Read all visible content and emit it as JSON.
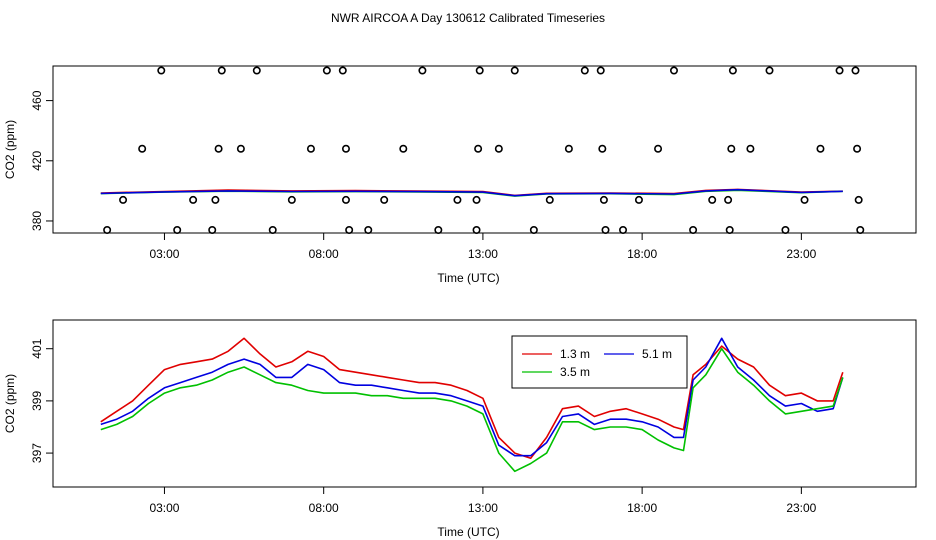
{
  "title": "NWR AIRCOA A  Day 130612  Calibrated Timeseries",
  "chart_data": [
    {
      "type": "scatter",
      "xlabel": "Time (UTC)",
      "ylabel": "CO2 (ppm)",
      "xlim": [
        -0.5,
        26.6
      ],
      "ylim": [
        372,
        483
      ],
      "x_ticks": [
        {
          "value": 3,
          "label": "03:00"
        },
        {
          "value": 8,
          "label": "08:00"
        },
        {
          "value": 13,
          "label": "13:00"
        },
        {
          "value": 18,
          "label": "18:00"
        },
        {
          "value": 23,
          "label": "23:00"
        }
      ],
      "y_ticks": [
        {
          "value": 380,
          "label": "380"
        },
        {
          "value": 420,
          "label": "420"
        },
        {
          "value": 460,
          "label": "460"
        }
      ],
      "calibration_points": [
        {
          "x": 1.2,
          "y": 374
        },
        {
          "x": 1.7,
          "y": 394
        },
        {
          "x": 2.3,
          "y": 428
        },
        {
          "x": 2.9,
          "y": 480
        },
        {
          "x": 3.4,
          "y": 374
        },
        {
          "x": 3.9,
          "y": 394
        },
        {
          "x": 4.5,
          "y": 374
        },
        {
          "x": 4.6,
          "y": 394
        },
        {
          "x": 4.7,
          "y": 428
        },
        {
          "x": 4.8,
          "y": 480
        },
        {
          "x": 5.4,
          "y": 428
        },
        {
          "x": 5.9,
          "y": 480
        },
        {
          "x": 6.4,
          "y": 374
        },
        {
          "x": 7.0,
          "y": 394
        },
        {
          "x": 7.6,
          "y": 428
        },
        {
          "x": 8.1,
          "y": 480
        },
        {
          "x": 8.6,
          "y": 480
        },
        {
          "x": 8.7,
          "y": 428
        },
        {
          "x": 8.7,
          "y": 394
        },
        {
          "x": 8.8,
          "y": 374
        },
        {
          "x": 9.4,
          "y": 374
        },
        {
          "x": 9.9,
          "y": 394
        },
        {
          "x": 10.5,
          "y": 428
        },
        {
          "x": 11.1,
          "y": 480
        },
        {
          "x": 11.6,
          "y": 374
        },
        {
          "x": 12.2,
          "y": 394
        },
        {
          "x": 12.8,
          "y": 374
        },
        {
          "x": 12.8,
          "y": 394
        },
        {
          "x": 12.85,
          "y": 428
        },
        {
          "x": 12.9,
          "y": 480
        },
        {
          "x": 13.5,
          "y": 428
        },
        {
          "x": 14.0,
          "y": 480
        },
        {
          "x": 14.6,
          "y": 374
        },
        {
          "x": 15.1,
          "y": 394
        },
        {
          "x": 15.7,
          "y": 428
        },
        {
          "x": 16.2,
          "y": 480
        },
        {
          "x": 16.7,
          "y": 480
        },
        {
          "x": 16.75,
          "y": 428
        },
        {
          "x": 16.8,
          "y": 394
        },
        {
          "x": 16.85,
          "y": 374
        },
        {
          "x": 17.4,
          "y": 374
        },
        {
          "x": 17.9,
          "y": 394
        },
        {
          "x": 18.5,
          "y": 428
        },
        {
          "x": 19.0,
          "y": 480
        },
        {
          "x": 19.6,
          "y": 374
        },
        {
          "x": 20.2,
          "y": 394
        },
        {
          "x": 20.7,
          "y": 394
        },
        {
          "x": 20.75,
          "y": 374
        },
        {
          "x": 20.8,
          "y": 428
        },
        {
          "x": 20.85,
          "y": 480
        },
        {
          "x": 21.4,
          "y": 428
        },
        {
          "x": 22.0,
          "y": 480
        },
        {
          "x": 22.5,
          "y": 374
        },
        {
          "x": 23.1,
          "y": 394
        },
        {
          "x": 23.6,
          "y": 428
        },
        {
          "x": 24.2,
          "y": 480
        },
        {
          "x": 24.7,
          "y": 480
        },
        {
          "x": 24.75,
          "y": 428
        },
        {
          "x": 24.8,
          "y": 394
        },
        {
          "x": 24.85,
          "y": 374
        }
      ],
      "series": [
        {
          "color": "#e00000",
          "x": [
            1,
            3,
            5,
            7,
            9,
            11,
            13,
            14,
            15,
            17,
            19,
            20,
            21,
            23,
            24.3
          ],
          "y": [
            398.6,
            399.6,
            400.5,
            400.0,
            400.2,
            399.9,
            399.6,
            397.0,
            398.4,
            398.6,
            398.2,
            400.3,
            401.0,
            399.2,
            399.8
          ]
        },
        {
          "color": "#00c000",
          "x": [
            1,
            3,
            5,
            7,
            9,
            11,
            13,
            14,
            15,
            17,
            19,
            20,
            21,
            23,
            24.3
          ],
          "y": [
            398.2,
            399.2,
            399.8,
            399.4,
            399.5,
            399.3,
            399.0,
            396.5,
            398.0,
            398.1,
            397.5,
            399.7,
            400.4,
            398.8,
            399.7
          ]
        },
        {
          "color": "#0000e0",
          "x": [
            1,
            3,
            5,
            7,
            9,
            11,
            13,
            14,
            15,
            17,
            19,
            20,
            21,
            23,
            24.3
          ],
          "y": [
            398.3,
            399.3,
            400.0,
            399.6,
            399.7,
            399.5,
            399.2,
            396.8,
            398.1,
            398.3,
            397.9,
            400.0,
            400.8,
            399.0,
            399.7
          ]
        }
      ]
    },
    {
      "type": "line",
      "xlabel": "Time (UTC)",
      "ylabel": "CO2 (ppm)",
      "xlim": [
        -0.5,
        26.6
      ],
      "ylim": [
        395.7,
        402.1
      ],
      "x_ticks": [
        {
          "value": 3,
          "label": "03:00"
        },
        {
          "value": 8,
          "label": "08:00"
        },
        {
          "value": 13,
          "label": "13:00"
        },
        {
          "value": 18,
          "label": "18:00"
        },
        {
          "value": 23,
          "label": "23:00"
        }
      ],
      "y_ticks": [
        {
          "value": 397,
          "label": "397"
        },
        {
          "value": 399,
          "label": "399"
        },
        {
          "value": 401,
          "label": "401"
        }
      ],
      "legend": {
        "position": "top-center",
        "entries": [
          {
            "name": "1.3 m",
            "color": "#e00000"
          },
          {
            "name": "5.1 m",
            "color": "#0000e0"
          },
          {
            "name": "3.5 m",
            "color": "#00c000"
          }
        ]
      },
      "series": [
        {
          "name": "1.3 m",
          "color": "#e00000",
          "x": [
            1.0,
            1.5,
            2.0,
            2.5,
            3.0,
            3.5,
            4.0,
            4.5,
            5.0,
            5.5,
            6.0,
            6.5,
            7.0,
            7.5,
            8.0,
            8.5,
            9.0,
            9.5,
            10.0,
            10.5,
            11.0,
            11.5,
            12.0,
            12.5,
            13.0,
            13.5,
            14.0,
            14.5,
            15.0,
            15.5,
            16.0,
            16.5,
            17.0,
            17.5,
            18.0,
            18.5,
            19.0,
            19.3,
            19.6,
            20.0,
            20.5,
            21.0,
            21.5,
            22.0,
            22.5,
            23.0,
            23.5,
            24.0,
            24.3
          ],
          "y": [
            398.2,
            398.6,
            399.0,
            399.6,
            400.2,
            400.4,
            400.5,
            400.6,
            400.9,
            401.4,
            400.8,
            400.3,
            400.5,
            400.9,
            400.7,
            400.2,
            400.1,
            400.0,
            399.9,
            399.8,
            399.7,
            399.7,
            399.6,
            399.4,
            399.1,
            397.6,
            397.0,
            396.8,
            397.6,
            398.7,
            398.8,
            398.4,
            398.6,
            398.7,
            398.5,
            398.3,
            398.0,
            397.9,
            400.0,
            400.4,
            401.1,
            400.6,
            400.3,
            399.6,
            399.2,
            399.3,
            399.0,
            399.0,
            400.1
          ]
        },
        {
          "name": "5.1 m",
          "color": "#0000e0",
          "x": [
            1.0,
            1.5,
            2.0,
            2.5,
            3.0,
            3.5,
            4.0,
            4.5,
            5.0,
            5.5,
            6.0,
            6.5,
            7.0,
            7.5,
            8.0,
            8.5,
            9.0,
            9.5,
            10.0,
            10.5,
            11.0,
            11.5,
            12.0,
            12.5,
            13.0,
            13.5,
            14.0,
            14.5,
            15.0,
            15.5,
            16.0,
            16.5,
            17.0,
            17.5,
            18.0,
            18.5,
            19.0,
            19.3,
            19.6,
            20.0,
            20.5,
            21.0,
            21.5,
            22.0,
            22.5,
            23.0,
            23.5,
            24.0,
            24.3
          ],
          "y": [
            398.1,
            398.3,
            398.6,
            399.1,
            399.5,
            399.7,
            399.9,
            400.1,
            400.4,
            400.6,
            400.4,
            399.9,
            399.9,
            400.4,
            400.2,
            399.7,
            399.6,
            399.6,
            399.5,
            399.4,
            399.3,
            399.3,
            399.2,
            399.0,
            398.8,
            397.3,
            396.9,
            396.9,
            397.4,
            398.4,
            398.5,
            398.1,
            398.3,
            398.3,
            398.2,
            398.0,
            397.6,
            397.6,
            399.8,
            400.3,
            401.4,
            400.3,
            399.8,
            399.2,
            398.8,
            398.9,
            398.6,
            398.7,
            399.9
          ]
        },
        {
          "name": "3.5 m",
          "color": "#00c000",
          "x": [
            1.0,
            1.5,
            2.0,
            2.5,
            3.0,
            3.5,
            4.0,
            4.5,
            5.0,
            5.5,
            6.0,
            6.5,
            7.0,
            7.5,
            8.0,
            8.5,
            9.0,
            9.5,
            10.0,
            10.5,
            11.0,
            11.5,
            12.0,
            12.5,
            13.0,
            13.5,
            14.0,
            14.5,
            15.0,
            15.5,
            16.0,
            16.5,
            17.0,
            17.5,
            18.0,
            18.5,
            19.0,
            19.3,
            19.6,
            20.0,
            20.5,
            21.0,
            21.5,
            22.0,
            22.5,
            23.0,
            23.5,
            24.0,
            24.3
          ],
          "y": [
            397.9,
            398.1,
            398.4,
            398.9,
            399.3,
            399.5,
            399.6,
            399.8,
            400.1,
            400.3,
            400.0,
            399.7,
            399.6,
            399.4,
            399.3,
            399.3,
            399.3,
            399.2,
            399.2,
            399.1,
            399.1,
            399.1,
            399.0,
            398.8,
            398.5,
            397.0,
            396.3,
            396.6,
            397.0,
            398.2,
            398.2,
            397.9,
            398.0,
            398.0,
            397.9,
            397.5,
            397.2,
            397.1,
            399.5,
            400.0,
            401.0,
            400.1,
            399.6,
            399.0,
            398.5,
            398.6,
            398.7,
            398.8,
            399.9
          ]
        }
      ]
    }
  ]
}
